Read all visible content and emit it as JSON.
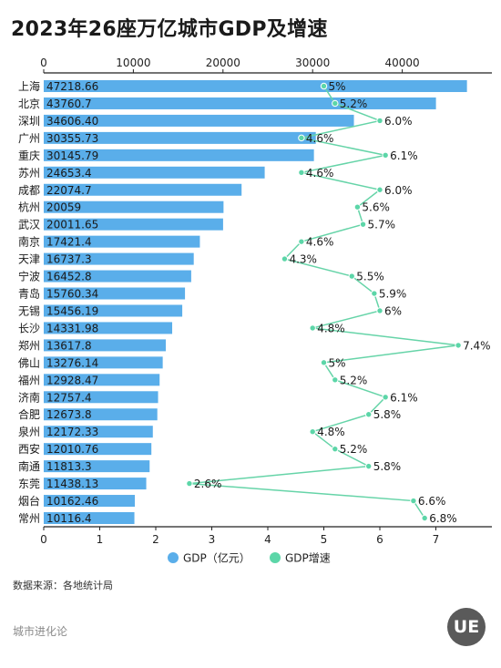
{
  "title": "2023年26座万亿城市GDP及增速",
  "source": "数据来源：各地统计局",
  "brand": "城市进化论",
  "logo_text": "UE",
  "colors": {
    "bar": "#5aaeea",
    "line": "#66d4a8",
    "dot": "#5cd6a8",
    "axis": "#222222",
    "grid": "#cccccc"
  },
  "chart_data": {
    "type": "bar",
    "orientation": "horizontal",
    "categories": [
      "上海",
      "北京",
      "深圳",
      "广州",
      "重庆",
      "苏州",
      "成都",
      "杭州",
      "武汉",
      "南京",
      "天津",
      "宁波",
      "青岛",
      "无锡",
      "长沙",
      "郑州",
      "佛山",
      "福州",
      "济南",
      "合肥",
      "泉州",
      "西安",
      "南通",
      "东莞",
      "烟台",
      "常州"
    ],
    "series": [
      {
        "name": "GDP（亿元）",
        "type": "bar",
        "axis": "top",
        "values": [
          47218.66,
          43760.7,
          34606.4,
          30355.73,
          30145.79,
          24653.4,
          22074.7,
          20059,
          20011.65,
          17421.4,
          16737.3,
          16452.8,
          15760.34,
          15456.19,
          14331.98,
          13617.8,
          13276.14,
          12928.47,
          12757.4,
          12673.8,
          12172.33,
          12010.76,
          11813.3,
          11438.13,
          10162.46,
          10116.4
        ],
        "labels": [
          "47218.66",
          "43760.7",
          "34606.40",
          "30355.73",
          "30145.79",
          "24653.4",
          "22074.7",
          "20059",
          "20011.65",
          "17421.4",
          "16737.3",
          "16452.8",
          "15760.34",
          "15456.19",
          "14331.98",
          "13617.8",
          "13276.14",
          "12928.47",
          "12757.4",
          "12673.8",
          "12172.33",
          "12010.76",
          "11813.3",
          "11438.13",
          "10162.46",
          "10116.4"
        ]
      },
      {
        "name": "GDP增速",
        "type": "line",
        "axis": "bottom",
        "values": [
          5,
          5.2,
          6.0,
          4.6,
          6.1,
          4.6,
          6.0,
          5.6,
          5.7,
          4.6,
          4.3,
          5.5,
          5.9,
          6,
          4.8,
          7.4,
          5,
          5.2,
          6.1,
          5.8,
          4.8,
          5.2,
          5.8,
          2.6,
          6.6,
          6.8
        ],
        "labels": [
          "5%",
          "5.2%",
          "6.0%",
          "4.6%",
          "6.1%",
          "4.6%",
          "6.0%",
          "5.6%",
          "5.7%",
          "4.6%",
          "4.3%",
          "5.5%",
          "5.9%",
          "6%",
          "4.8%",
          "7.4%",
          "5%",
          "5.2%",
          "6.1%",
          "5.8%",
          "4.8%",
          "5.2%",
          "5.8%",
          "2.6%",
          "6.6%",
          "6.8%"
        ]
      }
    ],
    "top_axis": {
      "range": [
        0,
        50000
      ],
      "ticks": [
        "0",
        "10000",
        "20000",
        "30000",
        "40000"
      ]
    },
    "bottom_axis": {
      "range": [
        0,
        8
      ],
      "ticks": [
        "0",
        "1",
        "2",
        "3",
        "4",
        "5",
        "6",
        "7"
      ]
    },
    "legend": {
      "position": "bottom",
      "items": [
        "GDP（亿元）",
        "GDP增速"
      ]
    },
    "grid": false
  }
}
